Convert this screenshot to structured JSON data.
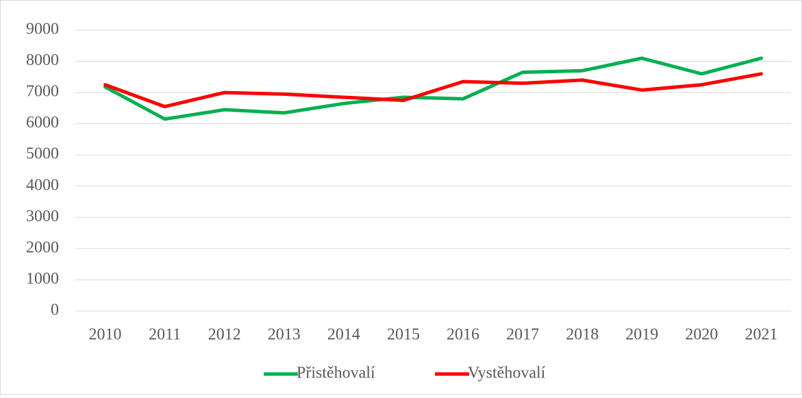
{
  "chart_data": {
    "type": "line",
    "categories": [
      "2010",
      "2011",
      "2012",
      "2013",
      "2014",
      "2015",
      "2016",
      "2017",
      "2018",
      "2019",
      "2020",
      "2021"
    ],
    "series": [
      {
        "name": "Přistěhovalí",
        "color": "#00b050",
        "values": [
          7180,
          6150,
          6450,
          6350,
          6650,
          6850,
          6800,
          7650,
          7700,
          8100,
          7600,
          8100
        ]
      },
      {
        "name": "Vystěhovalí",
        "color": "#ff0000",
        "values": [
          7250,
          6550,
          7000,
          6950,
          6850,
          6750,
          7350,
          7300,
          7400,
          7080,
          7250,
          7600
        ]
      }
    ],
    "ylim": [
      0,
      9000
    ],
    "yticks": [
      0,
      1000,
      2000,
      3000,
      4000,
      5000,
      6000,
      7000,
      8000,
      9000
    ],
    "grid": true,
    "legend": "bottom"
  }
}
